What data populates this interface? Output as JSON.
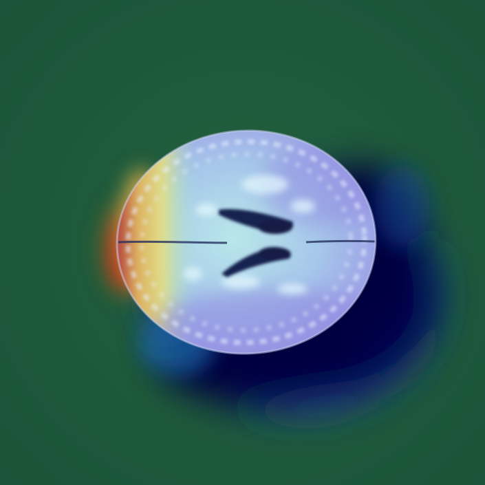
{
  "image": {
    "kind": "brain-mri-axial-slice-with-heatmap-overlay",
    "colormap": "jet",
    "background_color": "#1f5a3d",
    "colors": {
      "hot_red": "#c81e1e",
      "warm_yellow": "#f0dc5a",
      "cool_cyan": "#8ce6dc",
      "cold_blue": "#2a2ad8",
      "coldest_navy": "#050540",
      "tissue_gray": "#cfd3e6"
    }
  }
}
